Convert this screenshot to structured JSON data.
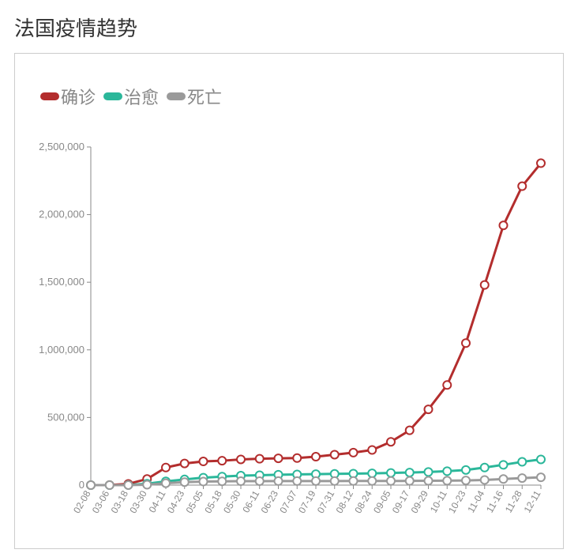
{
  "title": "法国疫情趋势",
  "chart": {
    "type": "line",
    "background": "#ffffff",
    "border_color": "#cccccc",
    "legend": {
      "fontsize": 22,
      "text_color": "#888888",
      "items": [
        {
          "label": "确诊",
          "color": "#b32d2d"
        },
        {
          "label": "治愈",
          "color": "#2bb79a"
        },
        {
          "label": "死亡",
          "color": "#9a9a9a"
        }
      ]
    },
    "x_categories": [
      "02-08",
      "03-06",
      "03-18",
      "03-30",
      "04-11",
      "04-23",
      "05-05",
      "05-18",
      "05-30",
      "06-11",
      "06-23",
      "07-07",
      "07-19",
      "07-31",
      "08-12",
      "08-24",
      "09-05",
      "09-17",
      "09-29",
      "10-11",
      "10-23",
      "11-04",
      "11-16",
      "11-28",
      "12-11"
    ],
    "y_axis": {
      "min": 0,
      "max": 2500000,
      "tick_step": 500000,
      "tick_labels": [
        "0",
        "500,000",
        "1,000,000",
        "1,500,000",
        "2,000,000",
        "2,500,000"
      ],
      "label_fontsize": 13,
      "label_color": "#888888",
      "grid": false
    },
    "x_axis": {
      "label_fontsize": 12,
      "label_color": "#888888",
      "rotation": -45
    },
    "series": [
      {
        "name": "confirmed",
        "color": "#b32d2d",
        "line_width": 3,
        "marker": "circle-open",
        "marker_size": 5,
        "marker_fill": "#ffffff",
        "data": [
          0,
          500,
          9000,
          45000,
          130000,
          160000,
          175000,
          180000,
          190000,
          195000,
          198000,
          200000,
          210000,
          225000,
          240000,
          260000,
          320000,
          405000,
          560000,
          740000,
          1050000,
          1480000,
          1920000,
          2210000,
          2380000
        ]
      },
      {
        "name": "recovered",
        "color": "#2bb79a",
        "line_width": 3,
        "marker": "circle-open",
        "marker_size": 5,
        "marker_fill": "#ffffff",
        "data": [
          0,
          50,
          1000,
          10000,
          28000,
          42000,
          55000,
          63000,
          70000,
          73000,
          77000,
          79000,
          81000,
          83000,
          85000,
          87000,
          90000,
          93000,
          97000,
          103000,
          112000,
          130000,
          150000,
          172000,
          190000
        ]
      },
      {
        "name": "deaths",
        "color": "#9a9a9a",
        "line_width": 3,
        "marker": "circle-open",
        "marker_size": 5,
        "marker_fill": "#ffffff",
        "data": [
          0,
          10,
          200,
          3000,
          14000,
          22000,
          26000,
          28000,
          29000,
          29300,
          29700,
          30000,
          30200,
          30300,
          30400,
          30550,
          30750,
          31100,
          31900,
          32700,
          34500,
          38300,
          45000,
          52000,
          57500
        ]
      }
    ]
  }
}
